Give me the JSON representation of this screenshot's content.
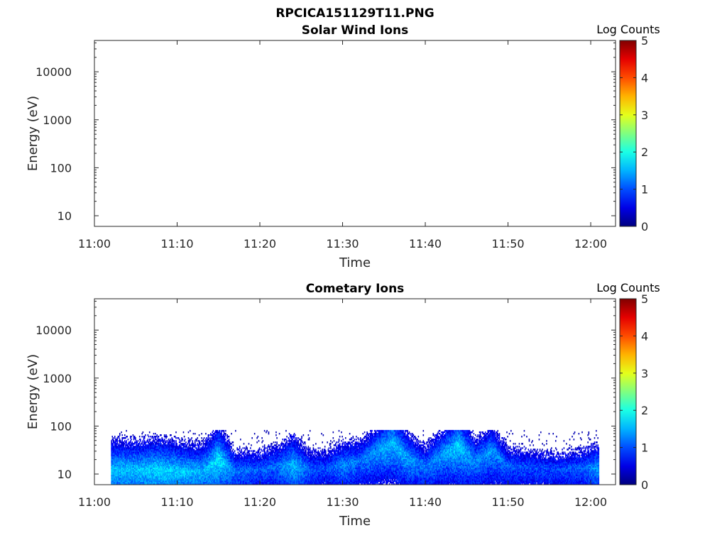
{
  "figure": {
    "title": "RPCICA151129T11.PNG"
  },
  "chart_data": [
    {
      "type": "heatmap",
      "title": "Solar Wind Ions",
      "xlabel": "Time",
      "ylabel": "Energy (eV)",
      "x_range": [
        "11:00",
        "12:03"
      ],
      "x_ticks": [
        "11:00",
        "11:10",
        "11:20",
        "11:30",
        "11:40",
        "11:50",
        "12:00"
      ],
      "y_scale": "log",
      "y_range": [
        6,
        45000
      ],
      "y_ticks": [
        "10",
        "100",
        "1000",
        "10000"
      ],
      "y_tick_values": [
        10,
        100,
        1000,
        10000
      ],
      "colorbar": {
        "label": "Log Counts",
        "range": [
          0,
          5
        ],
        "ticks": [
          "0",
          "1",
          "2",
          "3",
          "4",
          "5"
        ],
        "colormap": "jet"
      },
      "grid": false,
      "data": []
    },
    {
      "type": "heatmap",
      "title": "Cometary Ions",
      "xlabel": "Time",
      "ylabel": "Energy (eV)",
      "x_range": [
        "11:00",
        "12:03"
      ],
      "x_ticks": [
        "11:00",
        "11:10",
        "11:20",
        "11:30",
        "11:40",
        "11:50",
        "12:00"
      ],
      "y_scale": "log",
      "y_range": [
        6,
        45000
      ],
      "y_ticks": [
        "10",
        "100",
        "1000",
        "10000"
      ],
      "y_tick_values": [
        10,
        100,
        1000,
        10000
      ],
      "colorbar": {
        "label": "Log Counts",
        "range": [
          0,
          5
        ],
        "ticks": [
          "0",
          "1",
          "2",
          "3",
          "4",
          "5"
        ],
        "colormap": "jet"
      },
      "grid": false,
      "data_extent": {
        "time_start": "11:02",
        "time_end": "12:01",
        "energy_max": 80
      },
      "band_profile": [
        {
          "time": "11:02",
          "energy": 12,
          "log_counts": 1.6
        },
        {
          "time": "11:05",
          "energy": 12,
          "log_counts": 1.6
        },
        {
          "time": "11:08",
          "energy": 12,
          "log_counts": 1.7
        },
        {
          "time": "11:11",
          "energy": 11,
          "log_counts": 1.6
        },
        {
          "time": "11:13",
          "energy": 11,
          "log_counts": 1.5
        },
        {
          "time": "11:15",
          "energy": 20,
          "log_counts": 1.8
        },
        {
          "time": "11:17",
          "energy": 11,
          "log_counts": 1.2
        },
        {
          "time": "11:20",
          "energy": 12,
          "log_counts": 1.1
        },
        {
          "time": "11:22",
          "energy": 14,
          "log_counts": 1.2
        },
        {
          "time": "11:24",
          "energy": 15,
          "log_counts": 1.6
        },
        {
          "time": "11:26",
          "energy": 12,
          "log_counts": 1.1
        },
        {
          "time": "11:28",
          "energy": 13,
          "log_counts": 1.0
        },
        {
          "time": "11:30",
          "energy": 15,
          "log_counts": 1.3
        },
        {
          "time": "11:32",
          "energy": 18,
          "log_counts": 1.2
        },
        {
          "time": "11:34",
          "energy": 28,
          "log_counts": 1.4
        },
        {
          "time": "11:36",
          "energy": 45,
          "log_counts": 1.6
        },
        {
          "time": "11:38",
          "energy": 20,
          "log_counts": 1.4
        },
        {
          "time": "11:40",
          "energy": 14,
          "log_counts": 1.2
        },
        {
          "time": "11:42",
          "energy": 25,
          "log_counts": 1.4
        },
        {
          "time": "11:44",
          "energy": 40,
          "log_counts": 1.7
        },
        {
          "time": "11:46",
          "energy": 18,
          "log_counts": 1.3
        },
        {
          "time": "11:48",
          "energy": 30,
          "log_counts": 1.4
        },
        {
          "time": "11:50",
          "energy": 14,
          "log_counts": 1.1
        },
        {
          "time": "11:53",
          "energy": 13,
          "log_counts": 1.0
        },
        {
          "time": "11:56",
          "energy": 12,
          "log_counts": 1.0
        },
        {
          "time": "11:59",
          "energy": 13,
          "log_counts": 1.1
        },
        {
          "time": "12:01",
          "energy": 13,
          "log_counts": 1.4
        }
      ]
    }
  ]
}
